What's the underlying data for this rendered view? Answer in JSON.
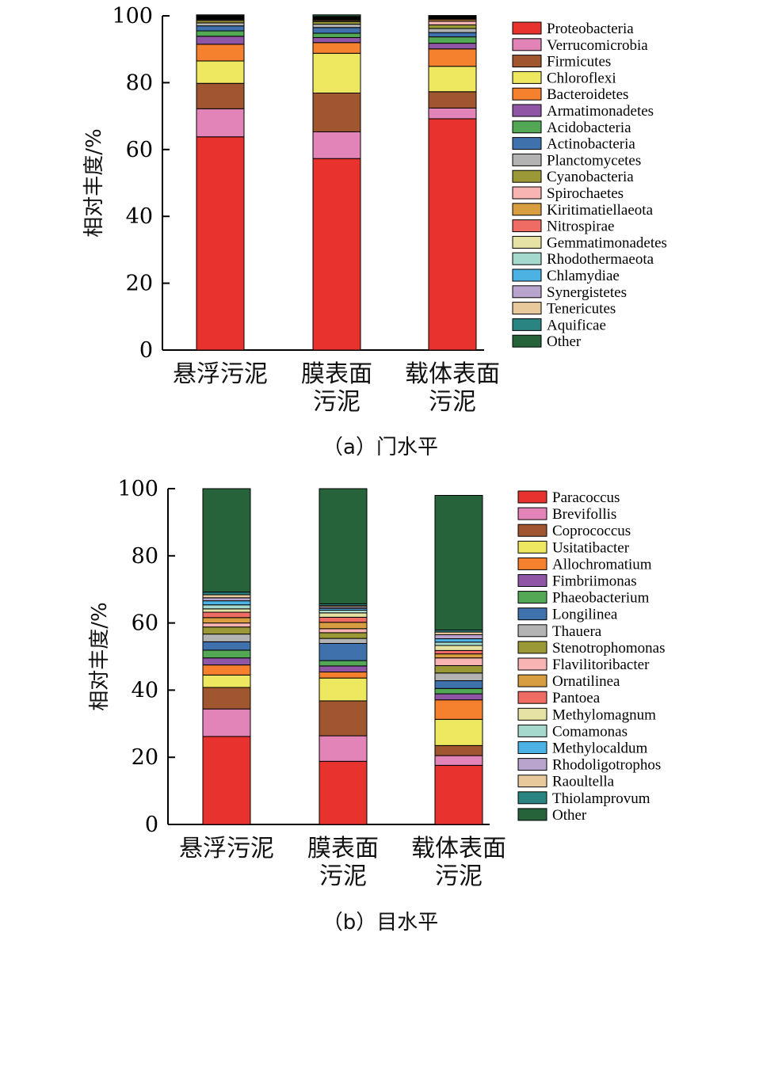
{
  "colors": [
    "#e8322e",
    "#e384b8",
    "#a0562f",
    "#eee760",
    "#f5812f",
    "#8e56a5",
    "#53a856",
    "#3f72ad",
    "#b3b3b3",
    "#9a9837",
    "#f7b4b2",
    "#d89c41",
    "#ee6c63",
    "#e6e2a3",
    "#a6d9cd",
    "#4cb1e3",
    "#b9a4cd",
    "#e8c99c",
    "#2a8482",
    "#26623a"
  ],
  "charts": [
    {
      "caption": "（a）门水平",
      "chart_data": {
        "type": "bar",
        "stacked": true,
        "ylabel": "相对丰度/%",
        "ylim": [
          0,
          100
        ],
        "yticks": [
          0,
          20,
          40,
          60,
          80,
          100
        ],
        "categories": [
          [
            "悬浮污泥"
          ],
          [
            "膜表面",
            "污泥"
          ],
          [
            "载体表面",
            "污泥"
          ]
        ],
        "legend_position": "right",
        "series": [
          {
            "name": "Proteobacteria",
            "values": [
              63.8,
              57.3,
              69.2
            ]
          },
          {
            "name": "Verrucomicrobia",
            "values": [
              8.4,
              8.0,
              3.2
            ]
          },
          {
            "name": "Firmicutes",
            "values": [
              7.6,
              11.6,
              4.9
            ]
          },
          {
            "name": "Chloroflexi",
            "values": [
              6.7,
              11.9,
              7.6
            ]
          },
          {
            "name": "Bacteroidetes",
            "values": [
              5.0,
              3.2,
              5.2
            ]
          },
          {
            "name": "Armatimonadetes",
            "values": [
              2.4,
              1.5,
              1.7
            ]
          },
          {
            "name": "Acidobacteria",
            "values": [
              1.6,
              1.3,
              1.9
            ]
          },
          {
            "name": "Actinobacteria",
            "values": [
              1.5,
              1.7,
              1.3
            ]
          },
          {
            "name": "Planctomycetes",
            "values": [
              0.9,
              1.0,
              1.2
            ]
          },
          {
            "name": "Cyanobacteria",
            "values": [
              0.7,
              0.8,
              1.1
            ]
          },
          {
            "name": "Spirochaetes",
            "values": [
              0.3,
              0.3,
              1.1
            ]
          },
          {
            "name": "Kiritimatiellaeota",
            "values": [
              0.2,
              0.3,
              0.5
            ]
          },
          {
            "name": "Nitrospirae",
            "values": [
              0.2,
              0.2,
              0.3
            ]
          },
          {
            "name": "Gemmatimonadetes",
            "values": [
              0.2,
              0.2,
              0.2
            ]
          },
          {
            "name": "Rhodothermaeota",
            "values": [
              0.1,
              0.1,
              0.1
            ]
          },
          {
            "name": "Chlamydiae",
            "values": [
              0.1,
              0.1,
              0.1
            ]
          },
          {
            "name": "Synergistetes",
            "values": [
              0.1,
              0.1,
              0.1
            ]
          },
          {
            "name": "Tenericutes",
            "values": [
              0.1,
              0.1,
              0.1
            ]
          },
          {
            "name": "Aquificae",
            "values": [
              0.1,
              0.1,
              0.1
            ]
          },
          {
            "name": "Other",
            "values": [
              0.3,
              0.5,
              0.2
            ]
          }
        ]
      }
    },
    {
      "caption": "（b）目水平",
      "chart_data": {
        "type": "bar",
        "stacked": true,
        "ylabel": "相对丰度/%",
        "ylim": [
          0,
          100
        ],
        "yticks": [
          0,
          20,
          40,
          60,
          80,
          100
        ],
        "categories": [
          [
            "悬浮污泥"
          ],
          [
            "膜表面",
            "污泥"
          ],
          [
            "载体表面",
            "污泥"
          ]
        ],
        "legend_position": "right",
        "series": [
          {
            "name": "Paracoccus",
            "values": [
              26.2,
              18.8,
              17.6
            ]
          },
          {
            "name": "Brevifollis",
            "values": [
              8.2,
              7.6,
              2.9
            ]
          },
          {
            "name": "Coprococcus",
            "values": [
              6.4,
              10.4,
              3.0
            ]
          },
          {
            "name": "Usitatibacter",
            "values": [
              3.7,
              6.8,
              7.8
            ]
          },
          {
            "name": "Allochromatium",
            "values": [
              3.0,
              1.8,
              5.8
            ]
          },
          {
            "name": "Fimbriimonas",
            "values": [
              2.1,
              1.8,
              1.8
            ]
          },
          {
            "name": "Phaeobacterium",
            "values": [
              2.3,
              1.6,
              1.6
            ]
          },
          {
            "name": "Longilinea",
            "values": [
              2.5,
              5.1,
              2.3
            ]
          },
          {
            "name": "Thauera",
            "values": [
              2.3,
              1.5,
              2.3
            ]
          },
          {
            "name": "Stenotrophomonas",
            "values": [
              2.1,
              1.7,
              2.2
            ]
          },
          {
            "name": "Flavilitoribacter",
            "values": [
              1.2,
              1.2,
              2.3
            ]
          },
          {
            "name": "Ornatilinea",
            "values": [
              1.6,
              1.9,
              1.2
            ]
          },
          {
            "name": "Pantoea",
            "values": [
              1.6,
              1.5,
              1.0
            ]
          },
          {
            "name": "Methylomagnum",
            "values": [
              1.0,
              1.3,
              1.5
            ]
          },
          {
            "name": "Comamonas",
            "values": [
              1.2,
              0.8,
              1.0
            ]
          },
          {
            "name": "Methylocaldum",
            "values": [
              1.2,
              0.5,
              1.0
            ]
          },
          {
            "name": "Rhodoligotrophos",
            "values": [
              0.9,
              0.5,
              1.2
            ]
          },
          {
            "name": "Raoultella",
            "values": [
              0.9,
              0.4,
              0.8
            ]
          },
          {
            "name": "Thiolamprovum",
            "values": [
              0.8,
              0.5,
              0.6
            ]
          },
          {
            "name": "Other",
            "values": [
              30.8,
              34.3,
              40.1
            ]
          }
        ]
      }
    }
  ]
}
